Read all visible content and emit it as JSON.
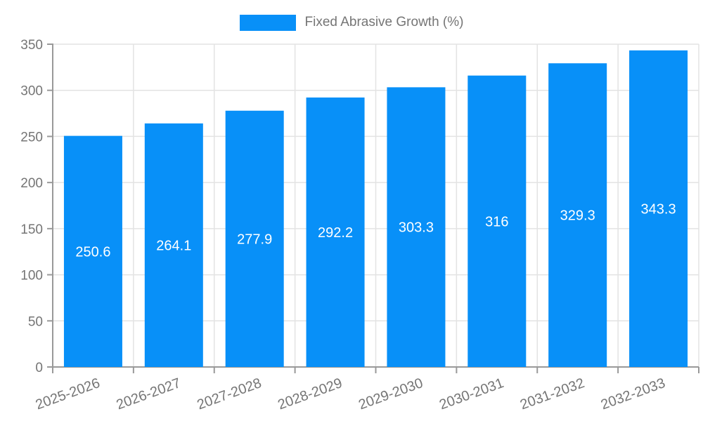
{
  "legend": {
    "label": "Fixed Abrasive Growth (%)",
    "swatch_color": "#0890F8"
  },
  "chart_data": {
    "type": "bar",
    "title": "",
    "xlabel": "",
    "ylabel": "",
    "categories": [
      "2025-2026",
      "2026-2027",
      "2027-2028",
      "2028-2029",
      "2029-2030",
      "2030-2031",
      "2031-2032",
      "2032-2033"
    ],
    "series": [
      {
        "name": "Fixed Abrasive Growth (%)",
        "values": [
          250.6,
          264.1,
          277.9,
          292.2,
          303.3,
          316,
          329.3,
          343.3
        ]
      }
    ],
    "value_labels": [
      "250.6",
      "264.1",
      "277.9",
      "292.2",
      "303.3",
      "316",
      "329.3",
      "343.3"
    ],
    "ylim": [
      0,
      350
    ],
    "ytick_step": 50,
    "ytick_labels": [
      "0",
      "50",
      "100",
      "150",
      "200",
      "250",
      "300",
      "350"
    ],
    "grid": true,
    "legend_position": "top",
    "x_label_rotation_deg": -20,
    "colors": {
      "bar": "#0890F8",
      "value_label": "#FFFFFF",
      "axis": "#999999",
      "grid": "#E3E3E3",
      "tick_label": "#757575"
    }
  }
}
